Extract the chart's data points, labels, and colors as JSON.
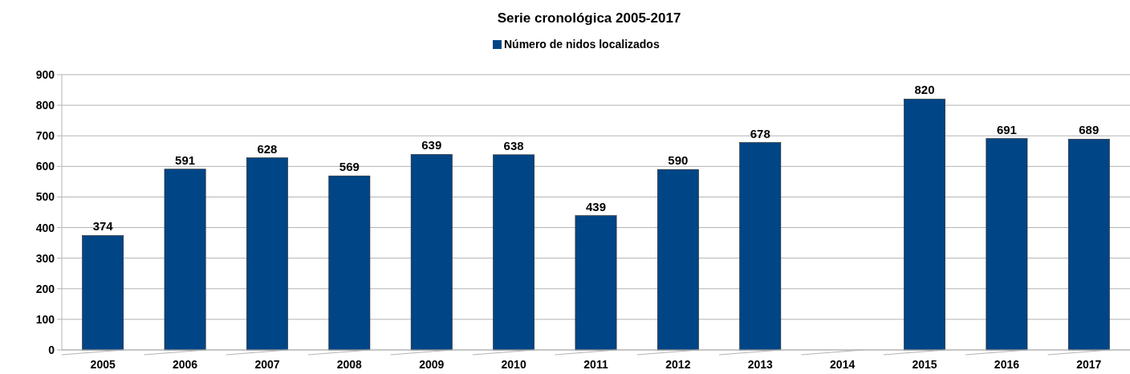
{
  "chart_data": {
    "type": "bar",
    "title": "Serie cronológica 2005-2017",
    "categories": [
      "2005",
      "2006",
      "2007",
      "2008",
      "2009",
      "2010",
      "2011",
      "2012",
      "2013",
      "2014",
      "2015",
      "2016",
      "2017"
    ],
    "series": [
      {
        "name": "Número de nidos localizados",
        "color": "#004586",
        "values": [
          374,
          591,
          628,
          569,
          639,
          638,
          439,
          590,
          678,
          null,
          820,
          691,
          689
        ]
      }
    ],
    "ylim": [
      0,
      900
    ],
    "yticks": [
      0,
      100,
      200,
      300,
      400,
      500,
      600,
      700,
      800,
      900
    ],
    "grid": "y",
    "legend": "top",
    "data_labels": true
  }
}
